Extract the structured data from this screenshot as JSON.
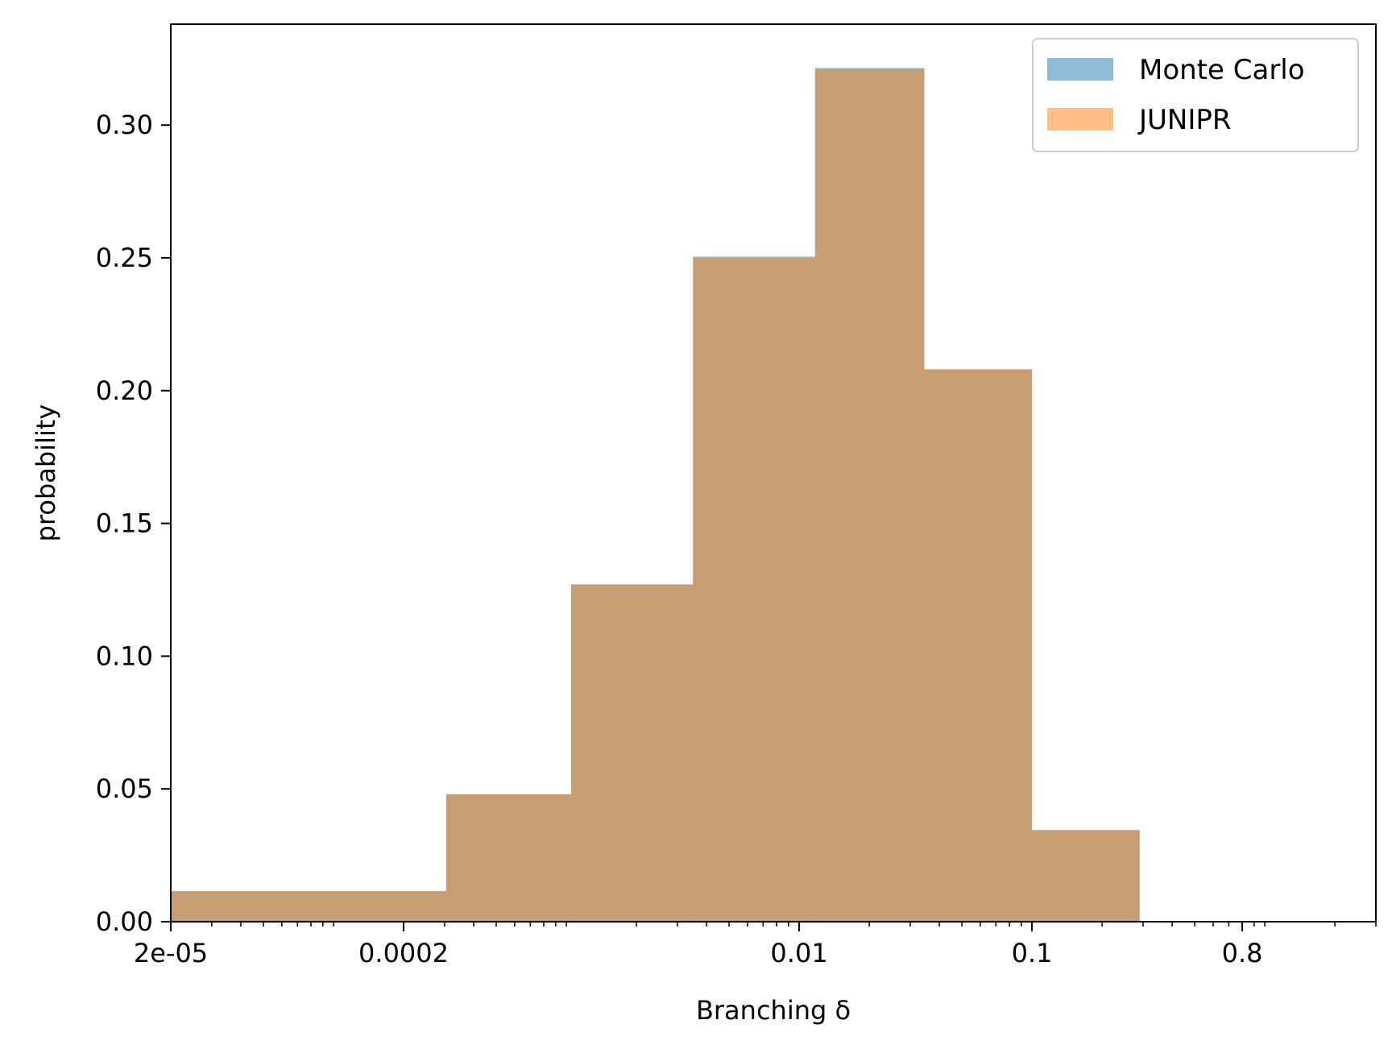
{
  "chart_data": {
    "type": "bar",
    "title": "",
    "xlabel": "Branching δ",
    "ylabel": "probability",
    "x_scale": "log",
    "xlim": [
      2e-05,
      3.0
    ],
    "ylim": [
      0,
      0.338
    ],
    "x_ticks": [
      {
        "value": 2e-05,
        "label": "2e-05"
      },
      {
        "value": 0.0002,
        "label": "0.0002"
      },
      {
        "value": 0.01,
        "label": "0.01"
      },
      {
        "value": 0.1,
        "label": "0.1"
      },
      {
        "value": 0.8,
        "label": "0.8"
      }
    ],
    "y_ticks": [
      {
        "value": 0.0,
        "label": "0.00"
      },
      {
        "value": 0.05,
        "label": "0.05"
      },
      {
        "value": 0.1,
        "label": "0.10"
      },
      {
        "value": 0.15,
        "label": "0.15"
      },
      {
        "value": 0.2,
        "label": "0.20"
      },
      {
        "value": 0.25,
        "label": "0.25"
      },
      {
        "value": 0.3,
        "label": "0.30"
      }
    ],
    "bin_edges": [
      2e-05,
      0.000305,
      0.00105,
      0.0035,
      0.0117,
      0.0345,
      0.1,
      0.29
    ],
    "series": [
      {
        "name": "Monte Carlo",
        "color": "#1f77b4",
        "values": [
          0.0115,
          0.048,
          0.127,
          0.2505,
          0.3215,
          0.208,
          0.0345
        ]
      },
      {
        "name": "JUNIPR",
        "color": "#ff7f0e",
        "values": [
          0.0115,
          0.048,
          0.127,
          0.25,
          0.321,
          0.208,
          0.0345
        ]
      }
    ],
    "alpha": 0.5,
    "legend_position": "top-right",
    "grid": false
  }
}
